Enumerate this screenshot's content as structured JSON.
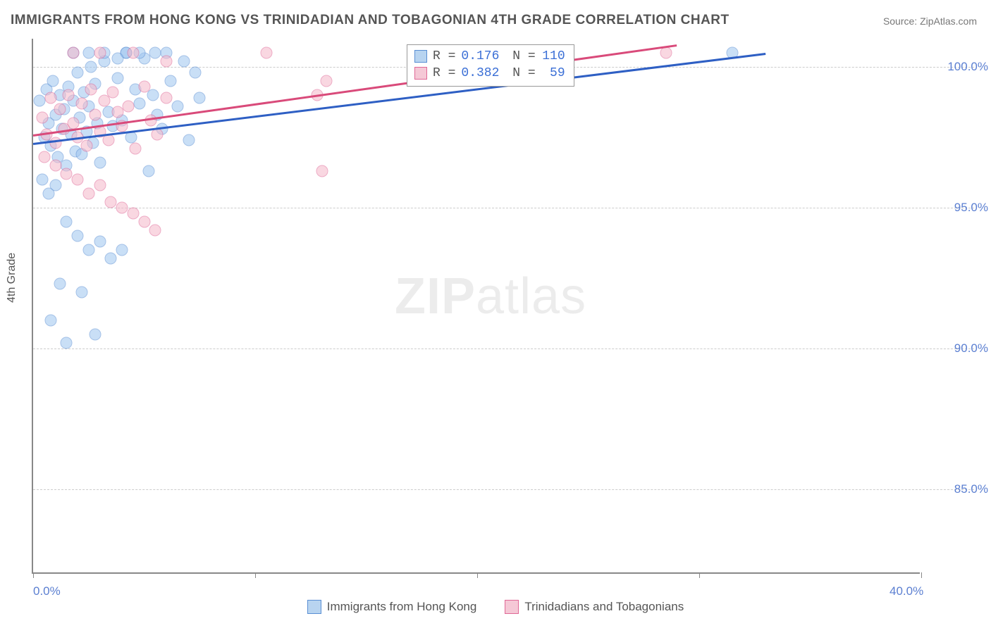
{
  "title": "IMMIGRANTS FROM HONG KONG VS TRINIDADIAN AND TOBAGONIAN 4TH GRADE CORRELATION CHART",
  "source": "Source: ZipAtlas.com",
  "ylabel": "4th Grade",
  "watermark_bold": "ZIP",
  "watermark_rest": "atlas",
  "chart": {
    "type": "scatter",
    "xlim": [
      0,
      40
    ],
    "ylim": [
      82,
      101
    ],
    "background_color": "#ffffff",
    "grid_color": "#cccccc",
    "axis_color": "#888888",
    "ytick_values": [
      85,
      90,
      95,
      100
    ],
    "ytick_labels": [
      "85.0%",
      "90.0%",
      "95.0%",
      "100.0%"
    ],
    "xtick_values": [
      0,
      10,
      20,
      30,
      40
    ],
    "xtick_labels": [
      "0.0%",
      "",
      "",
      "",
      "40.0%"
    ],
    "series": [
      {
        "name": "Immigrants from Hong Kong",
        "marker_color": "#9ec5f0",
        "marker_border": "#5a8fd4",
        "line_color": "#2e5fc4",
        "R": "0.176",
        "N": "110",
        "trend": {
          "x1": 0,
          "y1": 97.3,
          "x2": 33,
          "y2": 100.5
        },
        "points": [
          [
            0.3,
            98.8
          ],
          [
            0.5,
            97.5
          ],
          [
            0.6,
            99.2
          ],
          [
            0.7,
            98.0
          ],
          [
            0.8,
            97.2
          ],
          [
            0.9,
            99.5
          ],
          [
            1.0,
            98.3
          ],
          [
            1.1,
            96.8
          ],
          [
            1.2,
            99.0
          ],
          [
            1.3,
            97.8
          ],
          [
            1.4,
            98.5
          ],
          [
            1.5,
            96.5
          ],
          [
            1.6,
            99.3
          ],
          [
            1.7,
            97.6
          ],
          [
            1.8,
            98.8
          ],
          [
            1.9,
            97.0
          ],
          [
            2.0,
            99.8
          ],
          [
            2.1,
            98.2
          ],
          [
            2.2,
            96.9
          ],
          [
            2.3,
            99.1
          ],
          [
            2.4,
            97.7
          ],
          [
            2.5,
            98.6
          ],
          [
            2.6,
            100.0
          ],
          [
            2.7,
            97.3
          ],
          [
            2.8,
            99.4
          ],
          [
            2.9,
            98.0
          ],
          [
            3.0,
            96.6
          ],
          [
            3.2,
            100.2
          ],
          [
            3.4,
            98.4
          ],
          [
            3.6,
            97.9
          ],
          [
            3.8,
            99.6
          ],
          [
            4.0,
            98.1
          ],
          [
            4.2,
            100.5
          ],
          [
            4.4,
            97.5
          ],
          [
            4.6,
            99.2
          ],
          [
            4.8,
            98.7
          ],
          [
            5.0,
            100.3
          ],
          [
            5.2,
            96.3
          ],
          [
            5.4,
            99.0
          ],
          [
            5.6,
            98.3
          ],
          [
            5.8,
            97.8
          ],
          [
            6.0,
            100.5
          ],
          [
            6.2,
            99.5
          ],
          [
            6.5,
            98.6
          ],
          [
            6.8,
            100.2
          ],
          [
            7.0,
            97.4
          ],
          [
            7.3,
            99.8
          ],
          [
            7.5,
            98.9
          ],
          [
            0.4,
            96.0
          ],
          [
            0.7,
            95.5
          ],
          [
            1.0,
            95.8
          ],
          [
            1.5,
            94.5
          ],
          [
            2.0,
            94.0
          ],
          [
            2.5,
            93.5
          ],
          [
            3.0,
            93.8
          ],
          [
            3.5,
            93.2
          ],
          [
            4.0,
            93.5
          ],
          [
            1.2,
            92.3
          ],
          [
            2.2,
            92.0
          ],
          [
            0.8,
            91.0
          ],
          [
            1.5,
            90.2
          ],
          [
            2.8,
            90.5
          ],
          [
            4.2,
            100.5
          ],
          [
            4.8,
            100.5
          ],
          [
            5.5,
            100.5
          ],
          [
            31.5,
            100.5
          ],
          [
            1.8,
            100.5
          ],
          [
            2.5,
            100.5
          ],
          [
            3.2,
            100.5
          ],
          [
            3.8,
            100.3
          ]
        ]
      },
      {
        "name": "Trinidadians and Tobagonians",
        "marker_color": "#f5b8c9",
        "marker_border": "#e06896",
        "line_color": "#d94a7a",
        "R": "0.382",
        "N": "59",
        "trend": {
          "x1": 0,
          "y1": 97.6,
          "x2": 29,
          "y2": 100.8
        },
        "points": [
          [
            0.4,
            98.2
          ],
          [
            0.6,
            97.6
          ],
          [
            0.8,
            98.9
          ],
          [
            1.0,
            97.3
          ],
          [
            1.2,
            98.5
          ],
          [
            1.4,
            97.8
          ],
          [
            1.6,
            99.0
          ],
          [
            1.8,
            98.0
          ],
          [
            2.0,
            97.5
          ],
          [
            2.2,
            98.7
          ],
          [
            2.4,
            97.2
          ],
          [
            2.6,
            99.2
          ],
          [
            2.8,
            98.3
          ],
          [
            3.0,
            97.7
          ],
          [
            3.2,
            98.8
          ],
          [
            3.4,
            97.4
          ],
          [
            3.6,
            99.1
          ],
          [
            3.8,
            98.4
          ],
          [
            4.0,
            97.9
          ],
          [
            4.3,
            98.6
          ],
          [
            4.6,
            97.1
          ],
          [
            5.0,
            99.3
          ],
          [
            5.3,
            98.1
          ],
          [
            5.6,
            97.6
          ],
          [
            6.0,
            98.9
          ],
          [
            0.5,
            96.8
          ],
          [
            1.0,
            96.5
          ],
          [
            1.5,
            96.2
          ],
          [
            2.0,
            96.0
          ],
          [
            2.5,
            95.5
          ],
          [
            3.0,
            95.8
          ],
          [
            3.5,
            95.2
          ],
          [
            4.0,
            95.0
          ],
          [
            4.5,
            94.8
          ],
          [
            5.0,
            94.5
          ],
          [
            5.5,
            94.2
          ],
          [
            1.8,
            100.5
          ],
          [
            3.0,
            100.5
          ],
          [
            4.5,
            100.5
          ],
          [
            6.0,
            100.2
          ],
          [
            10.5,
            100.5
          ],
          [
            12.8,
            99.0
          ],
          [
            13.2,
            99.5
          ],
          [
            13.0,
            96.3
          ],
          [
            28.5,
            100.5
          ]
        ]
      }
    ]
  },
  "bottom_legend": [
    {
      "label": "Immigrants from Hong Kong",
      "fill": "#b8d4f0",
      "border": "#5a8fd4"
    },
    {
      "label": "Trinidadians and Tobagonians",
      "fill": "#f5c8d6",
      "border": "#e06896"
    }
  ]
}
